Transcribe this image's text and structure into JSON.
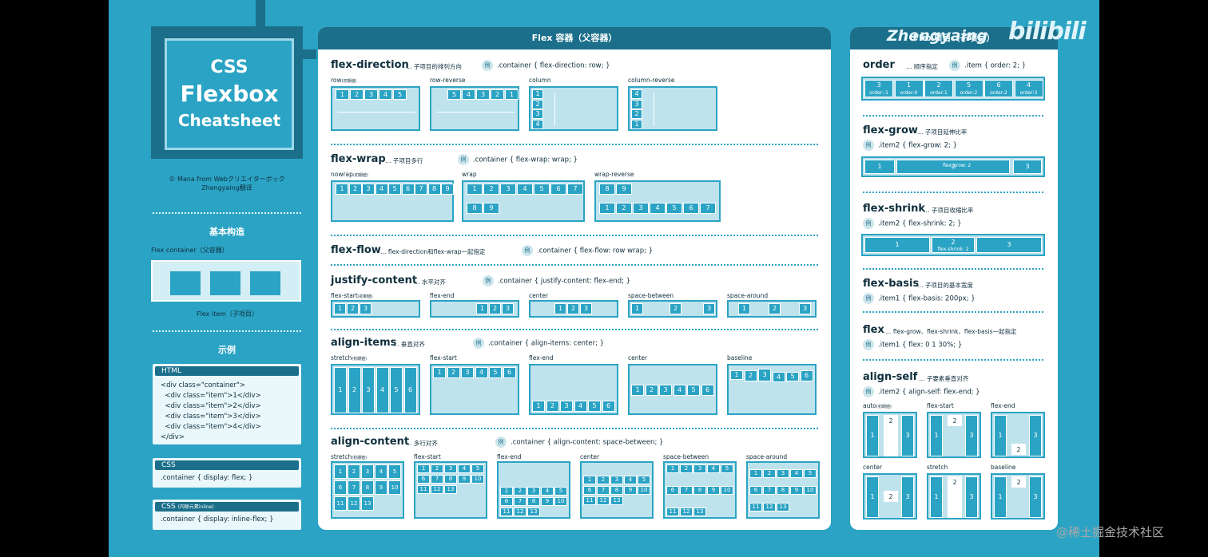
{
  "logo": {
    "line1": "CSS",
    "line2": "Flexbox",
    "line3": "Cheatsheet"
  },
  "credit": {
    "line1": "© Mana from Webクリエイターボック",
    "line2": "Zhengyaing翻译"
  },
  "basic": {
    "title": "基本构造",
    "container_label": "Flex container（父容器）",
    "item_label": "Flex item（子项目）"
  },
  "example": {
    "title": "示例",
    "html": {
      "header": "HTML",
      "lines": [
        "<div class=\"container\">",
        "  <div class=\"item\">1</div>",
        "  <div class=\"item\">2</div>",
        "  <div class=\"item\">3</div>",
        "  <div class=\"item\">4</div>",
        "</div>"
      ]
    },
    "css": {
      "header": "CSS",
      "line": ".container { display: flex; }"
    },
    "css_inline": {
      "header": "CSS",
      "header_note": "(内联元素inline)",
      "line": ".container { display: inline-flex; }"
    }
  },
  "container_panel": {
    "title": "Flex 容器（父容器）",
    "ex_badge": "例",
    "flex_direction": {
      "title": "flex-direction",
      "desc": "… 子项目的排列方向",
      "example": ".container { flex-direction: row; }",
      "labels": {
        "row": "row",
        "row_note": "(初期値)",
        "row_reverse": "row-reverse",
        "column": "column",
        "column_reverse": "column-reverse"
      },
      "row_items": [
        "1",
        "2",
        "3",
        "4",
        "5"
      ],
      "row_reverse_items": [
        "5",
        "4",
        "3",
        "2",
        "1"
      ],
      "column_items": [
        "1",
        "2",
        "3",
        "4"
      ],
      "column_reverse_items": [
        "4",
        "3",
        "2",
        "1"
      ]
    },
    "flex_wrap": {
      "title": "flex-wrap",
      "desc": "… 子项目多行",
      "example": ".container { flex-wrap: wrap; }",
      "labels": {
        "nowrap": "nowrap",
        "nowrap_note": "(初期値)",
        "wrap": "wrap",
        "wrap_reverse": "wrap-reverse"
      },
      "items": [
        "1",
        "2",
        "3",
        "4",
        "5",
        "6",
        "7",
        "8",
        "9"
      ]
    },
    "flex_flow": {
      "title": "flex-flow",
      "desc": "… flex-direction和flex-wrap一起指定",
      "example": ".container { flex-flow: row wrap; }"
    },
    "justify_content": {
      "title": "justify-content",
      "desc": "… 水平对齐",
      "example": ".container { justify-content: flex-end; }",
      "labels": {
        "flex_start": "flex-start",
        "flex_start_note": "(初期値)",
        "flex_end": "flex-end",
        "center": "center",
        "space_between": "space-between",
        "space_around": "space-around"
      },
      "items": [
        "1",
        "2",
        "3"
      ]
    },
    "align_items": {
      "title": "align-items",
      "desc": "… 垂直对齐",
      "example": ".container { align-items: center; }",
      "labels": {
        "stretch": "stretch",
        "stretch_note": "(初期値)",
        "flex_start": "flex-start",
        "flex_end": "flex-end",
        "center": "center",
        "baseline": "baseline"
      },
      "items": [
        "1",
        "2",
        "3",
        "4",
        "5",
        "6"
      ]
    },
    "align_content": {
      "title": "align-content",
      "desc": "… 多行对齐",
      "example": ".container { align-content: space-between; }",
      "labels": {
        "stretch": "stretch",
        "stretch_note": "(初期値)",
        "flex_start": "flex-start",
        "flex_end": "flex-end",
        "center": "center",
        "space_between": "space-between",
        "space_around": "space-around"
      },
      "items": [
        "1",
        "2",
        "3",
        "4",
        "5",
        "6",
        "7",
        "8",
        "9",
        "10",
        "11",
        "12",
        "13"
      ]
    }
  },
  "item_panel": {
    "title": "Flex项目（子项目）",
    "ex_badge": "例",
    "order": {
      "title": "order",
      "desc": "… 顺序指定",
      "example": ".item { order: 2; }",
      "items": [
        {
          "n": "3",
          "o": "order:-1"
        },
        {
          "n": "1",
          "o": "order:0"
        },
        {
          "n": "2",
          "o": "order:1"
        },
        {
          "n": "5",
          "o": "order:2"
        },
        {
          "n": "6",
          "o": "order:2"
        },
        {
          "n": "4",
          "o": "order:3"
        }
      ]
    },
    "flex_grow": {
      "title": "flex-grow",
      "desc": "… 子项目延伸比率",
      "example": ".item2 { flex-grow: 2; }",
      "items": [
        "1",
        "2",
        "3"
      ],
      "note": "flex-grow: 2"
    },
    "flex_shrink": {
      "title": "flex-shrink",
      "desc": "… 子项目收缩比率",
      "example": ".item2 { flex-shrink: 2; }",
      "items": [
        "1",
        "2",
        "3"
      ],
      "note": "flex-shrink: 2"
    },
    "flex_basis": {
      "title": "flex-basis",
      "desc": "… 子项目的基本宽度",
      "example": ".item1 { flex-basis: 200px; }"
    },
    "flex": {
      "title": "flex",
      "desc": "… flex-grow、flex-shrink、flex-basis一起指定",
      "example": ".item1 { flex: 0 1 30%; }"
    },
    "align_self": {
      "title": "align-self",
      "desc": "… 子要素垂直对齐",
      "example": ".item2 { align-self: flex-end; }",
      "labels": {
        "auto": "auto",
        "auto_note": "(初期値)",
        "flex_start": "flex-start",
        "flex_end": "flex-end",
        "center": "center",
        "stretch": "stretch",
        "baseline": "baseline"
      },
      "items": [
        "1",
        "2",
        "3"
      ]
    }
  },
  "watermarks": {
    "zhengyaing": "Zhengyaing",
    "bilibili": "bilibili",
    "juejin": "@稀土掘金技术社区"
  }
}
